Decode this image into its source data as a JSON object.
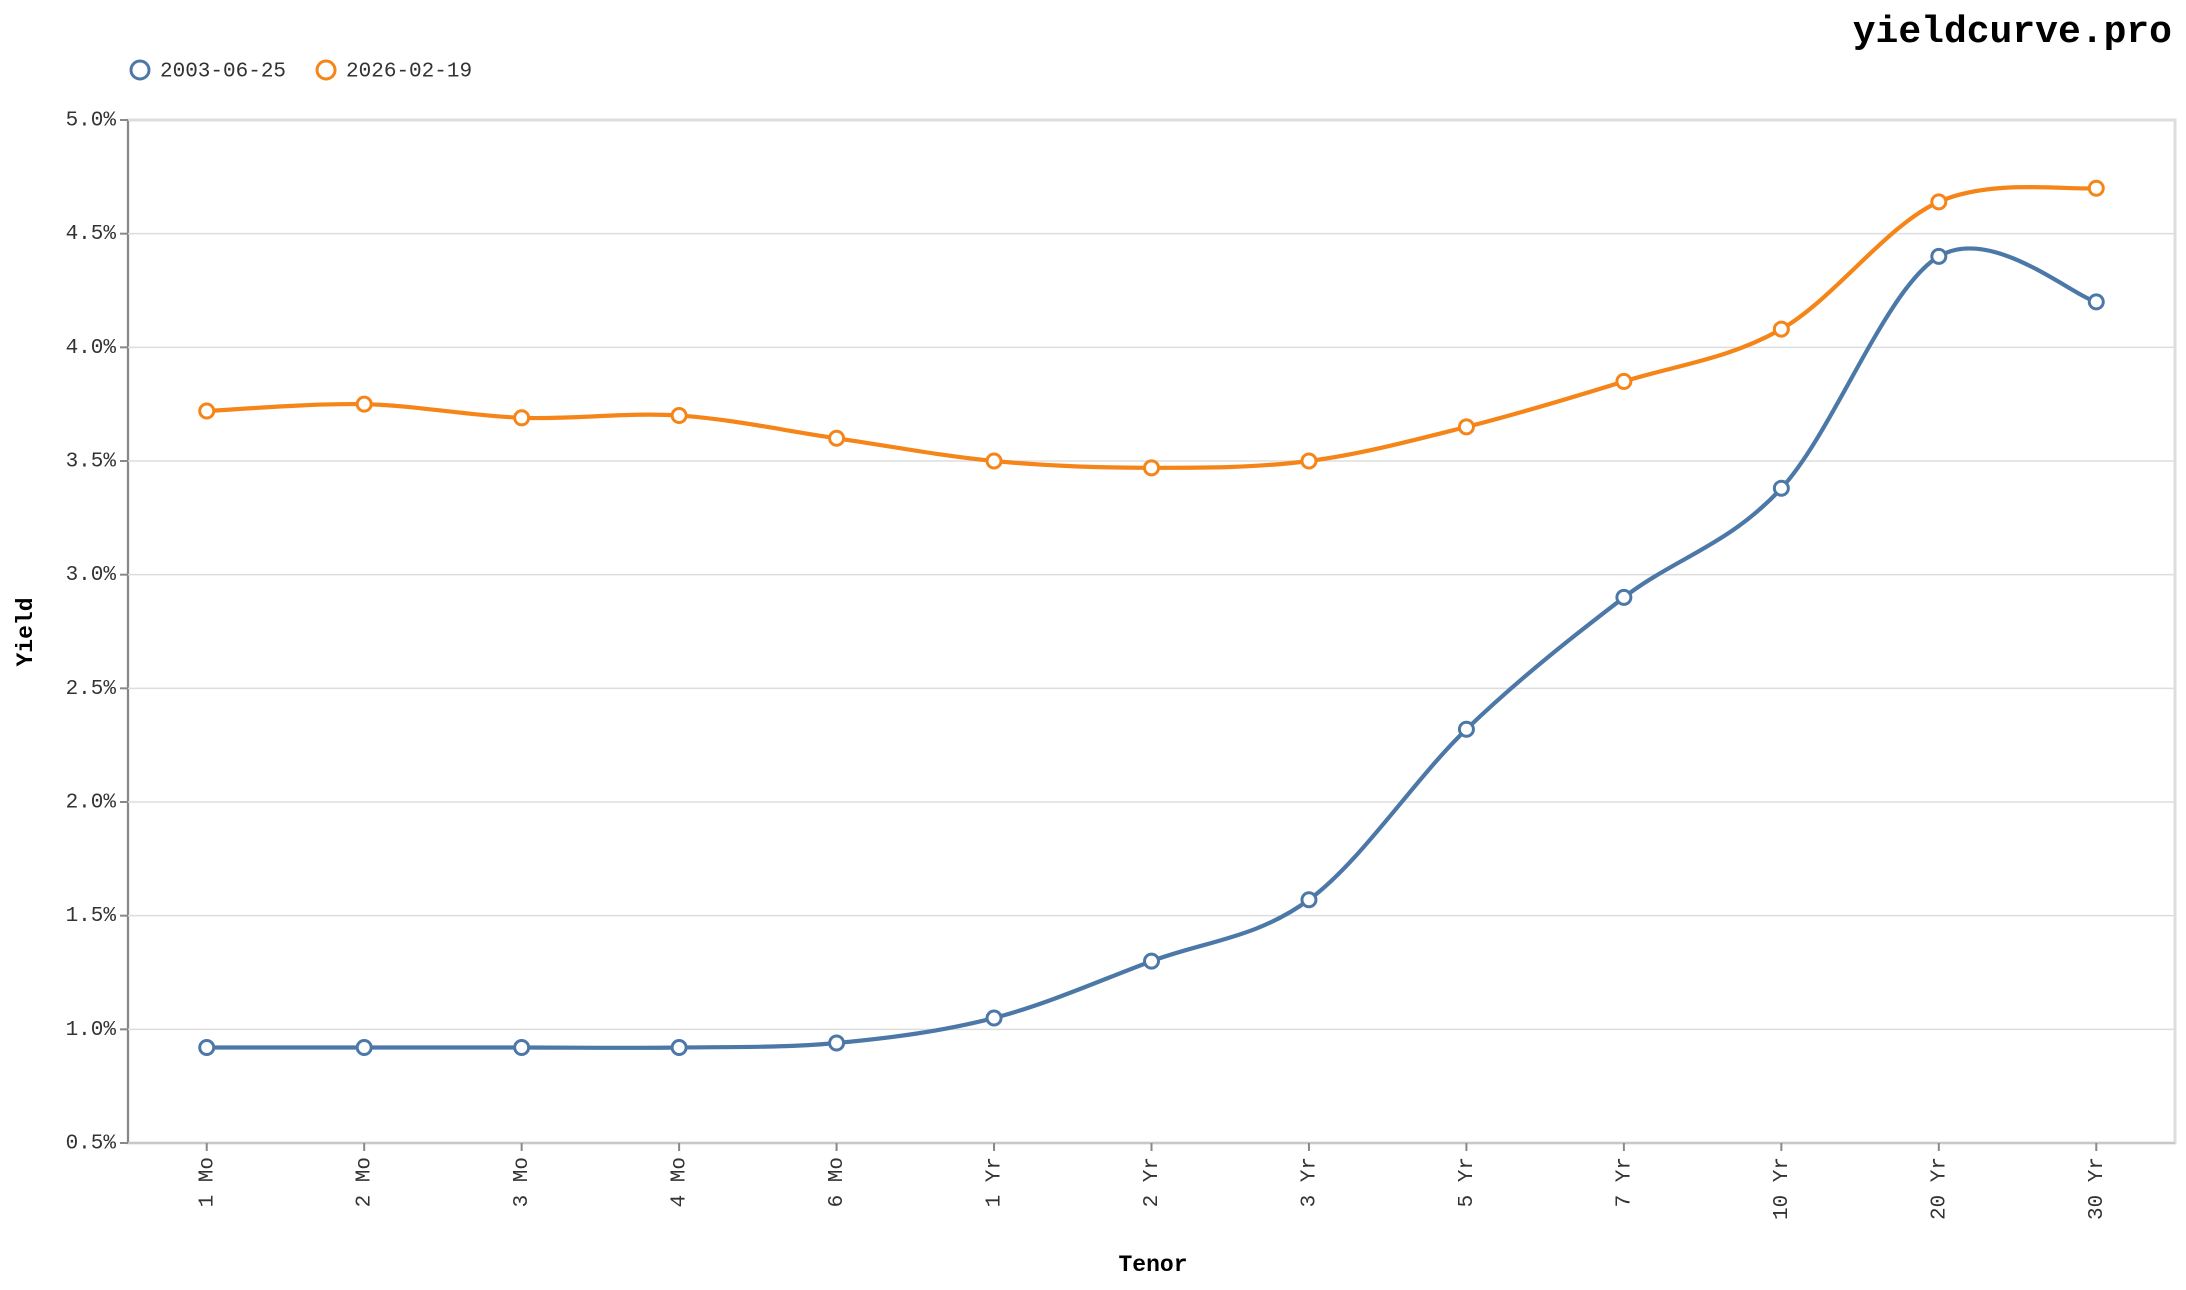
{
  "chart_data": {
    "type": "line",
    "watermark": "yieldcurve.pro",
    "x_label": "Tenor",
    "y_label": "Yield",
    "categories": [
      "1 Mo",
      "2 Mo",
      "3 Mo",
      "4 Mo",
      "6 Mo",
      "1 Yr",
      "2 Yr",
      "3 Yr",
      "5 Yr",
      "7 Yr",
      "10 Yr",
      "20 Yr",
      "30 Yr"
    ],
    "series": [
      {
        "name": "2003-06-25",
        "color": "#4c78a8",
        "values": [
          0.92,
          0.92,
          0.92,
          0.92,
          0.94,
          1.05,
          1.3,
          1.57,
          2.32,
          2.9,
          3.38,
          4.4,
          4.2
        ]
      },
      {
        "name": "2026-02-19",
        "color": "#f58518",
        "values": [
          3.72,
          3.75,
          3.69,
          3.7,
          3.6,
          3.5,
          3.47,
          3.5,
          3.65,
          3.85,
          4.08,
          4.64,
          4.7
        ]
      }
    ],
    "ylim": [
      0.5,
      5.0
    ],
    "yticks": [
      {
        "value": 0.5,
        "label": "0.5%"
      },
      {
        "value": 1.0,
        "label": "1.0%"
      },
      {
        "value": 1.5,
        "label": "1.5%"
      },
      {
        "value": 2.0,
        "label": "2.0%"
      },
      {
        "value": 2.5,
        "label": "2.5%"
      },
      {
        "value": 3.0,
        "label": "3.0%"
      },
      {
        "value": 3.5,
        "label": "3.5%"
      },
      {
        "value": 4.0,
        "label": "4.0%"
      },
      {
        "value": 4.5,
        "label": "4.5%"
      },
      {
        "value": 5.0,
        "label": "5.0%"
      }
    ],
    "grid": true,
    "legend": "top-left"
  }
}
